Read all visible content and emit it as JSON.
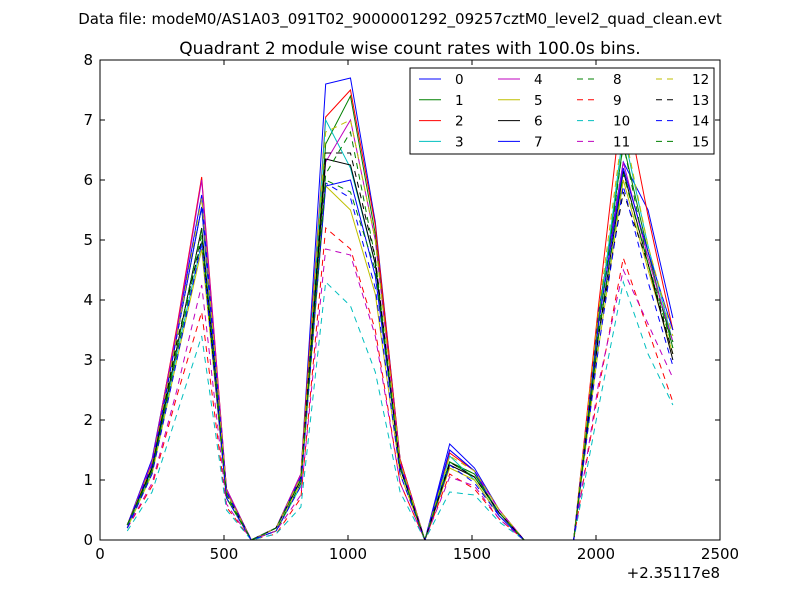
{
  "header": {
    "suptitle": "Data file: modeM0/AS1A03_091T02_9000001292_09257cztM0_level2_quad_clean.evt"
  },
  "chart_data": {
    "type": "line",
    "title": "Quadrant 2 module wise count rates with 100.0s bins.",
    "xlabel": "",
    "ylabel": "",
    "x_offset_label": "+2.35117e8",
    "xlim": [
      0,
      2500
    ],
    "ylim": [
      0,
      8
    ],
    "x_ticks": [
      0,
      500,
      1000,
      1500,
      2000,
      2500
    ],
    "y_ticks": [
      0,
      1,
      2,
      3,
      4,
      5,
      6,
      7,
      8
    ],
    "grid": false,
    "legend_position": "top-right",
    "legend_columns": 4,
    "x": [
      110,
      210,
      310,
      410,
      510,
      610,
      710,
      810,
      910,
      1010,
      1110,
      1210,
      1310,
      1410,
      1510,
      1610,
      1710,
      1810,
      1910,
      2010,
      2110,
      2210,
      2310
    ],
    "series": [
      {
        "name": "0",
        "color": "#0000ff",
        "dash": "solid",
        "values": [
          0.25,
          1.35,
          3.5,
          5.75,
          0.85,
          0.0,
          0.2,
          1.1,
          7.6,
          7.7,
          5.3,
          1.35,
          0.0,
          1.6,
          1.2,
          0.5,
          0.0,
          0.0,
          0.0,
          3.8,
          6.3,
          5.5,
          3.7
        ]
      },
      {
        "name": "1",
        "color": "#008000",
        "dash": "solid",
        "values": [
          0.25,
          1.2,
          3.4,
          5.55,
          0.8,
          0.0,
          0.2,
          1.05,
          6.6,
          7.4,
          5.1,
          1.3,
          0.0,
          1.3,
          1.1,
          0.45,
          0.0,
          0.0,
          0.0,
          3.7,
          6.6,
          4.8,
          3.2
        ]
      },
      {
        "name": "2",
        "color": "#ff0000",
        "dash": "solid",
        "values": [
          0.25,
          1.3,
          3.55,
          6.05,
          0.85,
          0.0,
          0.2,
          1.1,
          7.05,
          7.5,
          5.25,
          1.35,
          0.0,
          1.45,
          1.15,
          0.5,
          0.0,
          0.0,
          0.0,
          3.9,
          7.5,
          5.4,
          3.5
        ]
      },
      {
        "name": "3",
        "color": "#00bfbf",
        "dash": "solid",
        "values": [
          0.2,
          1.15,
          3.1,
          4.95,
          0.7,
          0.0,
          0.15,
          0.9,
          7.0,
          6.2,
          4.6,
          1.2,
          0.0,
          1.4,
          1.0,
          0.4,
          0.0,
          0.0,
          0.0,
          3.6,
          6.8,
          4.9,
          3.3
        ]
      },
      {
        "name": "4",
        "color": "#bf00bf",
        "dash": "solid",
        "values": [
          0.25,
          1.3,
          3.5,
          6.0,
          0.85,
          0.0,
          0.2,
          1.1,
          6.3,
          7.0,
          5.0,
          1.3,
          0.0,
          1.5,
          1.15,
          0.5,
          0.0,
          0.0,
          0.0,
          3.6,
          6.3,
          4.7,
          3.3
        ]
      },
      {
        "name": "5",
        "color": "#bfbf00",
        "dash": "solid",
        "values": [
          0.2,
          1.1,
          3.0,
          4.85,
          0.7,
          0.0,
          0.15,
          0.95,
          5.9,
          5.5,
          4.1,
          1.1,
          0.0,
          1.2,
          1.0,
          0.4,
          0.0,
          0.0,
          0.0,
          3.2,
          6.0,
          4.5,
          3.1
        ]
      },
      {
        "name": "6",
        "color": "#000000",
        "dash": "solid",
        "values": [
          0.25,
          1.2,
          3.2,
          5.2,
          0.8,
          0.0,
          0.2,
          1.0,
          6.35,
          6.25,
          4.6,
          1.2,
          0.0,
          1.25,
          1.05,
          0.45,
          0.0,
          0.0,
          0.0,
          3.4,
          6.15,
          4.6,
          3.0
        ]
      },
      {
        "name": "7",
        "color": "#0000ff",
        "dash": "solid",
        "values": [
          0.25,
          1.25,
          3.4,
          5.55,
          0.8,
          0.0,
          0.2,
          1.05,
          5.9,
          6.0,
          4.4,
          1.25,
          0.0,
          1.5,
          1.15,
          0.4,
          0.0,
          0.0,
          0.0,
          3.6,
          6.2,
          4.8,
          3.5
        ]
      },
      {
        "name": "8",
        "color": "#008000",
        "dash": "dashed",
        "values": [
          0.2,
          1.15,
          3.1,
          5.1,
          0.7,
          0.0,
          0.15,
          0.95,
          6.1,
          6.8,
          4.7,
          1.2,
          0.0,
          1.3,
          1.1,
          0.45,
          0.0,
          0.0,
          0.0,
          3.5,
          6.6,
          4.6,
          3.2
        ]
      },
      {
        "name": "9",
        "color": "#ff0000",
        "dash": "dashed",
        "values": [
          0.2,
          0.9,
          2.4,
          3.8,
          0.55,
          0.0,
          0.1,
          0.7,
          5.2,
          4.85,
          3.5,
          0.95,
          0.0,
          1.1,
          0.85,
          0.35,
          0.0,
          0.0,
          0.0,
          2.5,
          4.7,
          3.5,
          2.3
        ]
      },
      {
        "name": "10",
        "color": "#00bfbf",
        "dash": "dashed",
        "values": [
          0.15,
          0.8,
          2.1,
          3.4,
          0.5,
          0.0,
          0.1,
          0.55,
          4.3,
          3.9,
          2.8,
          0.8,
          0.0,
          0.8,
          0.75,
          0.3,
          0.0,
          0.0,
          0.0,
          2.2,
          4.3,
          3.1,
          2.25
        ]
      },
      {
        "name": "11",
        "color": "#bf00bf",
        "dash": "dashed",
        "values": [
          0.2,
          0.95,
          2.5,
          4.25,
          0.6,
          0.0,
          0.15,
          0.75,
          4.85,
          4.75,
          3.4,
          0.95,
          0.0,
          1.05,
          0.9,
          0.35,
          0.0,
          0.0,
          0.0,
          2.6,
          4.5,
          3.6,
          2.7
        ]
      },
      {
        "name": "12",
        "color": "#bfbf00",
        "dash": "dashed",
        "values": [
          0.25,
          1.25,
          3.4,
          5.7,
          0.8,
          0.0,
          0.2,
          1.05,
          6.8,
          7.0,
          5.0,
          1.3,
          0.0,
          1.4,
          1.15,
          0.5,
          0.0,
          0.0,
          0.0,
          3.8,
          6.9,
          4.9,
          3.4
        ]
      },
      {
        "name": "13",
        "color": "#000000",
        "dash": "dashed",
        "values": [
          0.25,
          1.2,
          3.3,
          5.0,
          0.75,
          0.0,
          0.2,
          1.0,
          6.45,
          6.45,
          4.7,
          1.2,
          0.0,
          1.3,
          1.05,
          0.45,
          0.0,
          0.0,
          0.0,
          3.4,
          5.8,
          4.6,
          3.1
        ]
      },
      {
        "name": "14",
        "color": "#0000ff",
        "dash": "dashed",
        "values": [
          0.2,
          1.1,
          3.0,
          4.95,
          0.7,
          0.0,
          0.15,
          0.9,
          5.95,
          5.7,
          4.2,
          1.1,
          0.0,
          1.25,
          0.95,
          0.4,
          0.0,
          0.0,
          0.0,
          3.2,
          5.9,
          4.3,
          2.9
        ]
      },
      {
        "name": "15",
        "color": "#008000",
        "dash": "dashed",
        "values": [
          0.25,
          1.15,
          3.2,
          5.2,
          0.75,
          0.0,
          0.2,
          1.0,
          6.0,
          5.8,
          4.5,
          1.2,
          0.0,
          1.3,
          1.05,
          0.45,
          0.0,
          0.0,
          0.0,
          3.4,
          6.1,
          4.6,
          3.3
        ]
      }
    ]
  }
}
